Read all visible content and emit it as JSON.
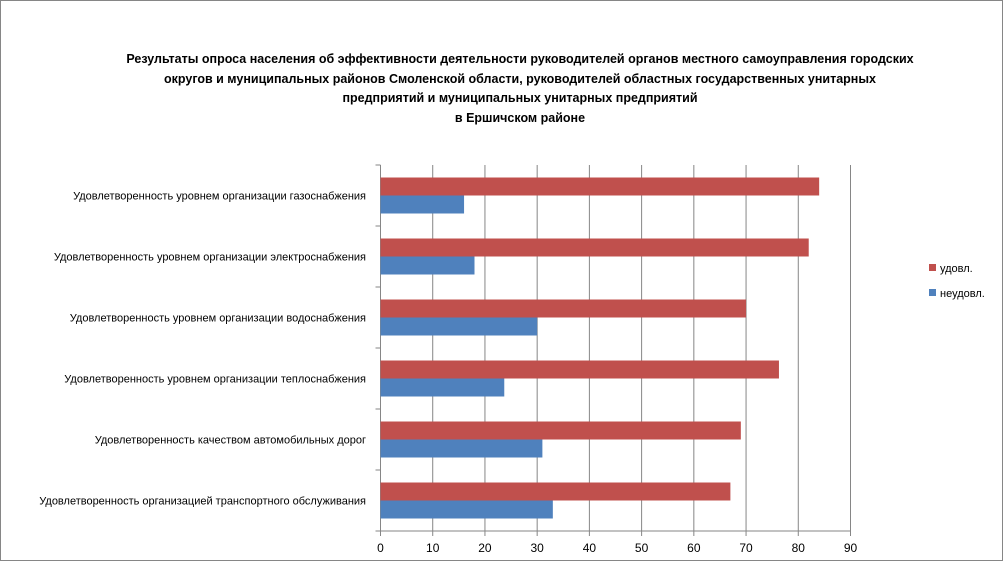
{
  "chart_data": {
    "type": "bar",
    "orientation": "horizontal",
    "title_lines": [
      "Результаты опроса населения об эффективности деятельности руководителей органов местного самоуправления городских",
      "округов и муниципальных районов Смоленской области, руководителей областных государственных унитарных",
      "предприятий и муниципальных унитарных предприятий",
      "в Ершичском районе"
    ],
    "categories": [
      "Удовлетворенность  уровнем  организации газоснабжения",
      "Удовлетворенность  уровнем организации электроснабжения",
      "Удовлетворенность  уровнем  организации водоснабжения",
      "Удовлетворенность  уровнем  организации теплоснабжения",
      "Удовлетворенность  качеством  автомобильных дорог",
      "Удовлетворенность  организацией транспортного обслуживания"
    ],
    "series": [
      {
        "name": "удовл.",
        "color": "#C0504D",
        "values": [
          84,
          82,
          70,
          76.3,
          69,
          67
        ]
      },
      {
        "name": "неудовл.",
        "color": "#4F81BD",
        "values": [
          16,
          18,
          30,
          23.7,
          31,
          33
        ]
      }
    ],
    "xlim": [
      0,
      90
    ],
    "xticks": [
      "0",
      "10",
      "20",
      "30",
      "40",
      "50",
      "60",
      "70",
      "80",
      "90"
    ],
    "grid": true,
    "legend": "right"
  }
}
